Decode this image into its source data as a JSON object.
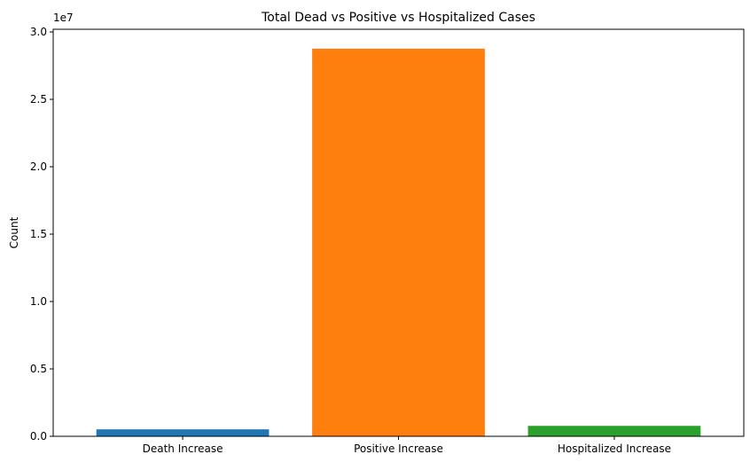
{
  "chart_data": {
    "type": "bar",
    "title": "Total Dead vs Positive vs Hospitalized Cases",
    "xlabel": "",
    "ylabel": "Count",
    "offset_label": "1e7",
    "categories": [
      "Death Increase",
      "Positive Increase",
      "Hospitalized Increase"
    ],
    "values": [
      515000,
      28760000,
      775000
    ],
    "colors": [
      "#1f77b4",
      "#ff7f0e",
      "#2ca02c"
    ],
    "ylim": [
      0,
      30200000
    ],
    "yticks": [
      0,
      5000000,
      10000000,
      15000000,
      20000000,
      25000000,
      30000000
    ],
    "ytick_labels": [
      "0.0",
      "0.5",
      "1.0",
      "1.5",
      "2.0",
      "2.5",
      "3.0"
    ],
    "grid": false,
    "legend": "none"
  }
}
